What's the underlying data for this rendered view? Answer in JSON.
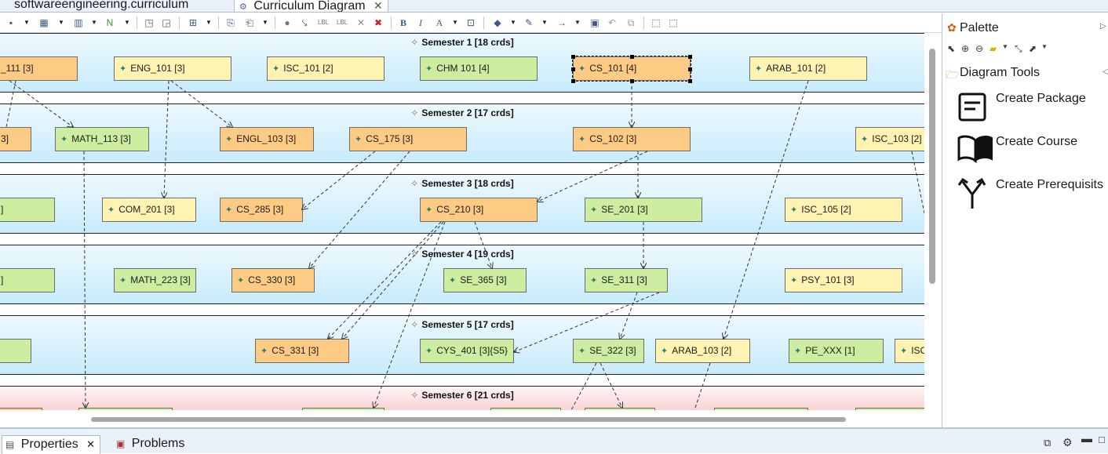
{
  "tabs": [
    {
      "label": "softwareengineering.curriculum",
      "active": false
    },
    {
      "label": "Curriculum Diagram",
      "active": true
    }
  ],
  "toolbar": {
    "icons": [
      "select-icon",
      "arrange-icon",
      "align-icon",
      "route-icon",
      "format-icon",
      "layout-icon",
      "copy-format-icon",
      "paste-format-icon",
      "note-icon",
      "delete-icon",
      "remove-icon",
      "bold-icon",
      "italic-icon",
      "font-color-icon",
      "fill-color-icon",
      "line-color-icon",
      "line-style-icon",
      "arrow-icon",
      "zoom-icon"
    ]
  },
  "semesters": [
    {
      "title": "Semester 1 [18 crds]"
    },
    {
      "title": "Semester 2 [17 crds]"
    },
    {
      "title": "Semester 3 [18 crds]"
    },
    {
      "title": "Semester 4 [19 crds]"
    },
    {
      "title": "Semester 5 [17 crds]"
    },
    {
      "title": "Semester 6 [21 crds]"
    }
  ],
  "courses": {
    "s1": [
      {
        "label": "_111 [3]",
        "color": "orange"
      },
      {
        "label": "ENG_101 [3]",
        "color": "yellow"
      },
      {
        "label": "ISC_101 [2]",
        "color": "yellow"
      },
      {
        "label": "CHM 101 [4]",
        "color": "green"
      },
      {
        "label": "CS_101 [4]",
        "color": "orange"
      },
      {
        "label": "ARAB_101 [2]",
        "color": "yellow"
      }
    ],
    "s2": [
      {
        "label": "3]",
        "color": "orange"
      },
      {
        "label": "MATH_113 [3]",
        "color": "green"
      },
      {
        "label": "ENGL_103 [3]",
        "color": "orange"
      },
      {
        "label": "CS_175 [3]",
        "color": "orange"
      },
      {
        "label": "CS_102 [3]",
        "color": "orange"
      },
      {
        "label": "ISC_103 [2]",
        "color": "yellow"
      }
    ],
    "s3": [
      {
        "label": "]",
        "color": "green"
      },
      {
        "label": "COM_201 [3]",
        "color": "yellow"
      },
      {
        "label": "CS_285 [3]",
        "color": "orange"
      },
      {
        "label": "CS_210 [3]",
        "color": "orange"
      },
      {
        "label": "SE_201 [3]",
        "color": "green"
      },
      {
        "label": "ISC_105 [2]",
        "color": "yellow"
      }
    ],
    "s4": [
      {
        "label": "]",
        "color": "green"
      },
      {
        "label": "MATH_223 [3]",
        "color": "green"
      },
      {
        "label": "CS_330 [3]",
        "color": "orange"
      },
      {
        "label": "SE_365 [3]",
        "color": "green"
      },
      {
        "label": "SE_311 [3]",
        "color": "green"
      },
      {
        "label": "PSY_101 [3]",
        "color": "yellow"
      }
    ],
    "s5": [
      {
        "label": "",
        "color": "green"
      },
      {
        "label": "CS_331 [3]",
        "color": "orange"
      },
      {
        "label": "CYS_401 [3]{S5}",
        "color": "green"
      },
      {
        "label": "SE_322 [3]",
        "color": "green"
      },
      {
        "label": "ARAB_103 [2]",
        "color": "yellow"
      },
      {
        "label": "PE_XXX [1]",
        "color": "green"
      },
      {
        "label": "ISC",
        "color": "yellow"
      }
    ]
  },
  "colors": {
    "orange": "#fecb85",
    "yellow": "#fff3b3",
    "green": "#cdeea0"
  },
  "palette": {
    "title": "Palette",
    "drawer": "Diagram Tools",
    "tools": [
      {
        "label": "Create Package",
        "icon": "package-icon"
      },
      {
        "label": "Create Course",
        "icon": "book-icon"
      },
      {
        "label": "Create Prerequisits",
        "icon": "fork-arrow-icon"
      }
    ]
  },
  "bottom_tabs": [
    {
      "label": "Properties",
      "active": true
    },
    {
      "label": "Problems",
      "active": false
    }
  ]
}
